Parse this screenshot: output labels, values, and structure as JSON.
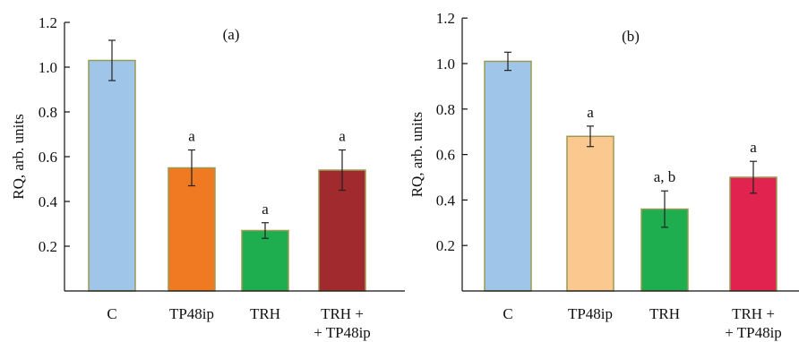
{
  "chart_data": [
    {
      "type": "bar",
      "panel_label": "(a)",
      "ylabel": "RQ, arb. units",
      "xlabel": "",
      "ylim": [
        0,
        1.2
      ],
      "yticks": [
        "0.2",
        "0.4",
        "0.6",
        "0.8",
        "1.0",
        "1.2"
      ],
      "categories": [
        "C",
        "TP48ip",
        "TRH",
        "TRH +\n+ TP48ip"
      ],
      "values": [
        1.03,
        0.55,
        0.27,
        0.54
      ],
      "errors": [
        0.09,
        0.08,
        0.035,
        0.09
      ],
      "annotations": [
        "",
        "a",
        "a",
        "a"
      ],
      "colors": [
        "#9fc5e8",
        "#f07a22",
        "#1fae4f",
        "#a12a2e"
      ],
      "grid": false
    },
    {
      "type": "bar",
      "panel_label": "(b)",
      "ylabel": "RQ, arb. units",
      "xlabel": "",
      "ylim": [
        0,
        1.2
      ],
      "yticks": [
        "0.2",
        "0.4",
        "0.6",
        "0.8",
        "1.0",
        "1.2"
      ],
      "categories": [
        "C",
        "TP48ip",
        "TRH",
        "TRH +\n+ TP48ip"
      ],
      "values": [
        1.01,
        0.68,
        0.36,
        0.5
      ],
      "errors": [
        0.04,
        0.045,
        0.08,
        0.07
      ],
      "annotations": [
        "",
        "a",
        "a, b",
        "a"
      ],
      "colors": [
        "#9fc5e8",
        "#fbc890",
        "#1fae4f",
        "#e0234f"
      ],
      "grid": false
    }
  ]
}
